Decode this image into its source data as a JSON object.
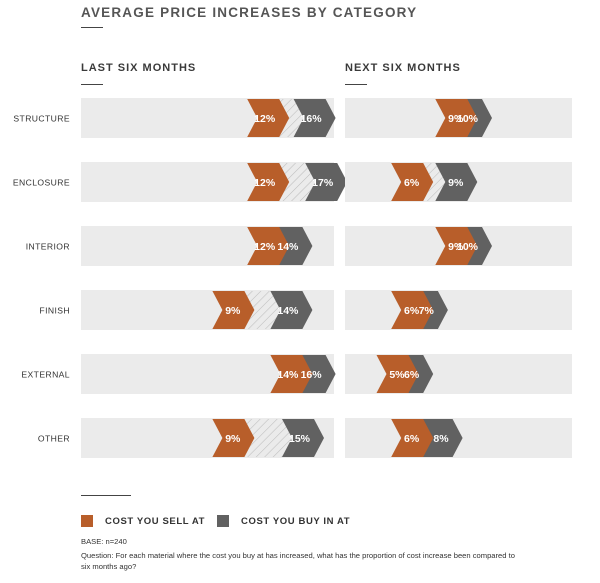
{
  "title": "AVERAGE PRICE INCREASES BY CATEGORY",
  "colors": {
    "sell": "#B85E2A",
    "buy": "#616161",
    "track": "#EBEBEB"
  },
  "legend": {
    "sell": "COST YOU SELL AT",
    "buy": "COST YOU BUY IN AT"
  },
  "footer": {
    "base": "BASE: n=240",
    "question": "Question: For each material where the cost you buy at has increased, what has the proportion of cost increase been compared to six months ago?"
  },
  "chart_data": [
    {
      "type": "bar",
      "title": "LAST SIX MONTHS",
      "categories": [
        "STRUCTURE",
        "ENCLOSURE",
        "INTERIOR",
        "FINISH",
        "EXTERNAL",
        "OTHER"
      ],
      "series": [
        {
          "name": "COST YOU SELL AT",
          "values": [
            12,
            12,
            12,
            9,
            14,
            9
          ],
          "labels": [
            "12%",
            "12%",
            "12%",
            "9%",
            "14%",
            "9%"
          ]
        },
        {
          "name": "COST YOU BUY IN AT",
          "values": [
            16,
            17,
            14,
            14,
            16,
            15
          ],
          "labels": [
            "16%",
            "17%",
            "14%",
            "14%",
            "16%",
            "15%"
          ]
        }
      ]
    },
    {
      "type": "bar",
      "title": "NEXT SIX MONTHS",
      "categories": [
        "STRUCTURE",
        "ENCLOSURE",
        "INTERIOR",
        "FINISH",
        "EXTERNAL",
        "OTHER"
      ],
      "series": [
        {
          "name": "COST YOU SELL AT",
          "values": [
            9,
            6,
            9,
            6,
            5,
            6
          ],
          "labels": [
            "9%",
            "6%",
            "9%",
            "6%",
            "5%",
            "6%"
          ]
        },
        {
          "name": "COST YOU BUY IN AT",
          "values": [
            10,
            9,
            10,
            7,
            6,
            8
          ],
          "labels": [
            "10%",
            "9%",
            "10%",
            "7%",
            "6%",
            "8%"
          ]
        }
      ]
    }
  ]
}
